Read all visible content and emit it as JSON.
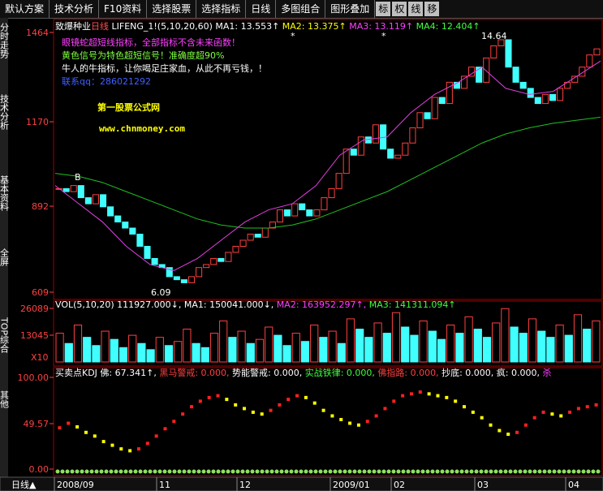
{
  "toolbar": {
    "buttons": [
      "默认方案",
      "技术分析",
      "F10资料",
      "选择股票",
      "选择指标",
      "日线",
      "多图组合",
      "图形叠加"
    ],
    "small_buttons": [
      "标",
      "权",
      "线",
      "移"
    ]
  },
  "sidebar": {
    "tabs": [
      "分时走势",
      "技术分析",
      "基本资料",
      "全屏",
      "TOP综合",
      "其他"
    ]
  },
  "main": {
    "header": [
      {
        "text": "致爆种业",
        "color": "#ffffff"
      },
      {
        "text": "日线",
        "color": "#ff5050"
      },
      {
        "text": " LIFENG_1!(5,10,20,60)",
        "color": "#ffffff"
      },
      {
        "text": " MA1: 13.553↑",
        "color": "#ffffff"
      },
      {
        "text": " MA2: 13.375↑",
        "color": "#ffff00"
      },
      {
        "text": " MA3: 13.119↑",
        "color": "#ff40ff"
      },
      {
        "text": " MA4: 12.404↑",
        "color": "#40ff40"
      }
    ],
    "annotations": [
      {
        "text": "眼镜蛇超短线指标，全部指标不含未来函数！",
        "color": "#ff40ff"
      },
      {
        "text": "黄色信号为特色超短信号！准确度超90%",
        "color": "#80ff40"
      },
      {
        "text": "牛人的牛指标，让你喝足庄家血，从此不再亏钱，！",
        "color": "#ffffff"
      },
      {
        "text": "联系qq：286021292",
        "color": "#4060ff"
      }
    ],
    "watermark": [
      "第一股票公式网",
      "www.chnmoney.com"
    ],
    "marks": {
      "high": "14.64",
      "low": "6.09",
      "buy": "B",
      "star1": "*",
      "star2": "*"
    },
    "ylim": [
      609,
      1464
    ],
    "yticks": [
      609,
      892,
      1170,
      1464
    ],
    "closes": [
      950,
      940,
      960,
      920,
      900,
      930,
      890,
      860,
      840,
      820,
      800,
      760,
      720,
      700,
      690,
      660,
      650,
      640,
      660,
      690,
      700,
      720,
      710,
      740,
      760,
      780,
      800,
      790,
      820,
      840,
      880,
      860,
      900,
      880,
      860,
      880,
      920,
      950,
      1000,
      1080,
      1060,
      1120,
      1100,
      1160,
      1080,
      1050,
      1060,
      1100,
      1150,
      1200,
      1180,
      1250,
      1230,
      1300,
      1280,
      1320,
      1350,
      1300,
      1380,
      1420,
      1440,
      1350,
      1300,
      1280,
      1250,
      1230,
      1260,
      1240,
      1280,
      1300,
      1320,
      1350,
      1390,
      1410
    ],
    "lines": [
      {
        "color": "#20c020",
        "values": [
          1000,
          990,
          970,
          940,
          910,
          880,
          850,
          830,
          820,
          820,
          830,
          850,
          880,
          910,
          940,
          980,
          1020,
          1060,
          1100,
          1130,
          1150,
          1165,
          1175,
          1185
        ]
      },
      {
        "color": "#e040e0",
        "values": [
          960,
          900,
          840,
          760,
          700,
          680,
          720,
          780,
          840,
          880,
          900,
          960,
          1060,
          1110,
          1120,
          1200,
          1260,
          1300,
          1350,
          1280,
          1260,
          1270,
          1320,
          1370
        ]
      }
    ]
  },
  "volume": {
    "header": [
      {
        "text": "VOL(5,10,20)",
        "color": "#ffffff"
      },
      {
        "text": " 111927.000↓,",
        "color": "#ffffff"
      },
      {
        "text": " MA1: 150041.000↓,",
        "color": "#ffffff"
      },
      {
        "text": " MA2: 163952.297↑,",
        "color": "#ff40ff"
      },
      {
        "text": " MA3: 141311.094↑",
        "color": "#40ff40"
      }
    ],
    "ylim": [
      0,
      26089
    ],
    "yticks": [
      13045,
      26089
    ],
    "unit": "X10",
    "values": [
      14000,
      9000,
      18000,
      12000,
      8000,
      15000,
      11000,
      7000,
      13000,
      9000,
      6000,
      12000,
      8000,
      10000,
      16000,
      9000,
      7000,
      14000,
      20000,
      12000,
      15000,
      9000,
      11000,
      17000,
      13000,
      8000,
      14000,
      10000,
      18000,
      12000,
      15000,
      9000,
      21000,
      16000,
      12000,
      19000,
      14000,
      24000,
      17000,
      13000,
      20000,
      15000,
      11000,
      18000,
      14000,
      22000,
      16000,
      12000,
      19000,
      26000,
      17000,
      14000,
      21000,
      15000,
      12000,
      18000,
      13000,
      23000,
      16000,
      20000
    ]
  },
  "indicator": {
    "header": [
      {
        "text": "买卖点KDJ",
        "color": "#ffffff"
      },
      {
        "text": " 佛: 67.341↑,",
        "color": "#ffffff"
      },
      {
        "text": " 黑马警戒: 0.000,",
        "color": "#ff4040"
      },
      {
        "text": " 势能警戒: 0.000,",
        "color": "#ffffff"
      },
      {
        "text": " 实战铁律: 0.000,",
        "color": "#40ff40"
      },
      {
        "text": " 佛指路: 0.000,",
        "color": "#ff4040"
      },
      {
        "text": " 抄底: 0.000,",
        "color": "#ffffff"
      },
      {
        "text": " 疯: 0.000,",
        "color": "#ffffff"
      },
      {
        "text": " 杀",
        "color": "#ff40ff"
      }
    ],
    "ylim": [
      0,
      100
    ],
    "yticks": [
      {
        "value": 0,
        "label": "0.00"
      },
      {
        "value": 49.57,
        "label": "49.57"
      },
      {
        "value": 100,
        "label": "100.00"
      }
    ],
    "values": [
      45,
      50,
      46,
      40,
      36,
      30,
      26,
      22,
      20,
      22,
      28,
      36,
      44,
      52,
      60,
      68,
      74,
      78,
      80,
      76,
      70,
      66,
      62,
      60,
      64,
      70,
      76,
      80,
      78,
      72,
      64,
      58,
      54,
      50,
      48,
      52,
      58,
      66,
      74,
      80,
      82,
      84,
      82,
      80,
      78,
      74,
      68,
      62,
      56,
      48,
      42,
      38,
      40,
      48,
      56,
      62,
      60,
      58,
      62,
      66,
      68,
      70
    ]
  },
  "footer": {
    "period": "日线▲",
    "dates": [
      "2008/09",
      "11",
      "12",
      "2009/01",
      "02",
      "03",
      "04"
    ]
  }
}
